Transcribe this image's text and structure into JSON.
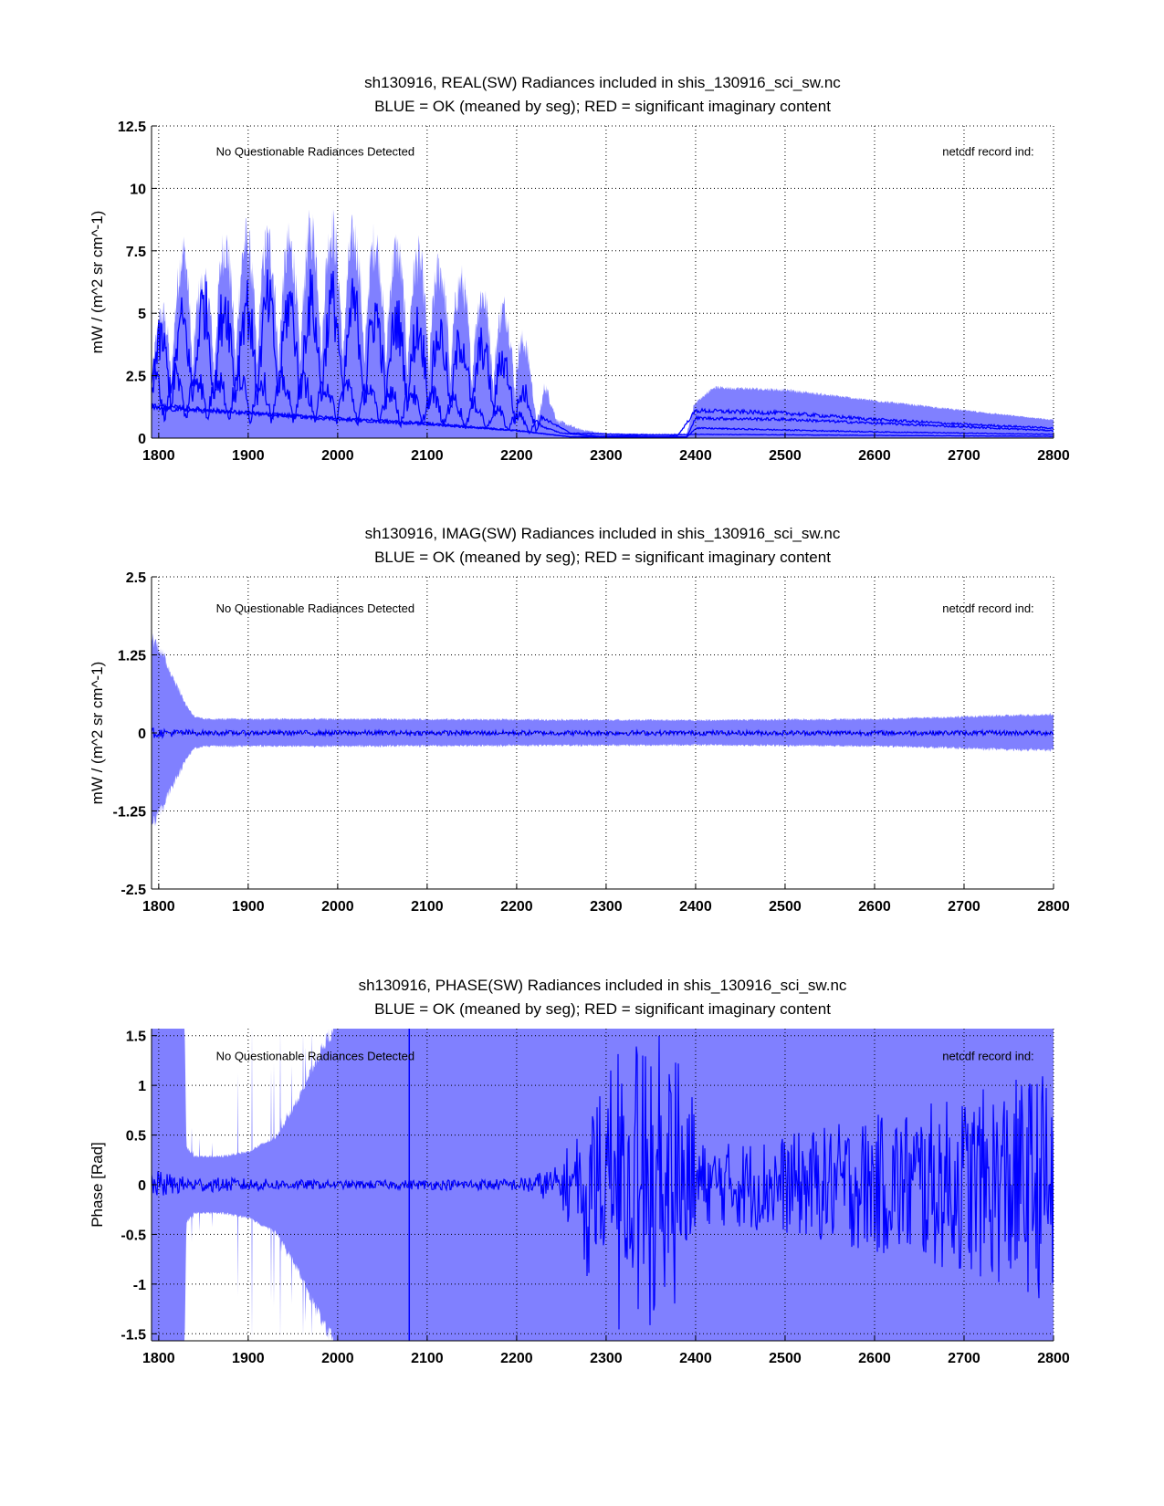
{
  "colors": {
    "envelope": "#8080ff",
    "mean": "#0000ff",
    "grid": "#000000"
  },
  "chart_data": [
    {
      "type": "area",
      "title_line1": "sh130916, REAL(SW) Radiances included in shis_130916_sci_sw.nc",
      "title_line2": "BLUE = OK (meaned by seg); RED = significant imaginary content",
      "xlabel": "",
      "ylabel": "mW / (m^2 sr cm^-1)",
      "ylabel_parts": [
        "mW / (m",
        "2",
        " sr cm",
        "-1",
        ")"
      ],
      "xlim": [
        1792,
        2800
      ],
      "ylim": [
        0,
        12.5
      ],
      "xticks": [
        1800,
        1900,
        2000,
        2100,
        2200,
        2300,
        2400,
        2500,
        2600,
        2700,
        2800
      ],
      "yticks": [
        0,
        2.5,
        5,
        7.5,
        10,
        12.5
      ],
      "ytick_labels": [
        "0",
        "2.5",
        "5",
        "7.5",
        "10",
        "12.5"
      ],
      "grid": true,
      "annotations": [
        {
          "text": "No Questionable Radiances Detected",
          "x": 1975,
          "y": 11.5
        },
        {
          "text": "netcdf record ind:",
          "x": 2727,
          "y": 11.5
        }
      ],
      "envelope_max": {
        "x": [
          1792,
          1800,
          1830,
          1850,
          1870,
          1900,
          1920,
          1950,
          1980,
          2000,
          2050,
          2100,
          2150,
          2200,
          2215,
          2225,
          2232,
          2245,
          2270,
          2300,
          2390,
          2398,
          2420,
          2500,
          2600,
          2700,
          2800
        ],
        "y": [
          4.5,
          5.2,
          8.8,
          6.8,
          8.7,
          9.0,
          8.9,
          8.7,
          9.8,
          9.3,
          8.8,
          8.0,
          6.8,
          5.5,
          3.5,
          1.5,
          2.4,
          0.8,
          0.4,
          0.2,
          0.2,
          1.4,
          2.1,
          2.0,
          1.55,
          1.15,
          0.75
        ]
      },
      "series": [
        {
          "name": "mean seg 1",
          "x": [
            1792,
            1850,
            1900,
            2000,
            2100,
            2180,
            2220,
            2260,
            2380,
            2400,
            2500,
            2600,
            2700,
            2800
          ],
          "y": [
            3.0,
            4.5,
            4.5,
            4.6,
            3.6,
            2.9,
            1.0,
            0.2,
            0.1,
            1.1,
            1.0,
            0.75,
            0.55,
            0.4
          ],
          "oscillating": true
        },
        {
          "name": "mean seg 2",
          "x": [
            1792,
            1900,
            2000,
            2100,
            2200,
            2250,
            2300,
            2390,
            2400,
            2500,
            2600,
            2700,
            2800
          ],
          "y": [
            2.2,
            2.0,
            1.8,
            1.5,
            0.8,
            0.2,
            0.05,
            0.05,
            0.8,
            0.75,
            0.6,
            0.45,
            0.3
          ],
          "oscillating": true
        },
        {
          "name": "mean seg 3",
          "x": [
            1792,
            1900,
            2000,
            2100,
            2200,
            2260,
            2390,
            2400,
            2600,
            2800
          ],
          "y": [
            1.3,
            1.0,
            0.8,
            0.6,
            0.3,
            0.05,
            0.03,
            0.4,
            0.25,
            0.15
          ],
          "oscillating": false
        },
        {
          "name": "mean seg 4",
          "x": [
            1792,
            1900,
            2000,
            2100,
            2200,
            2260,
            2400,
            2800
          ],
          "y": [
            1.2,
            1.0,
            0.75,
            0.55,
            0.3,
            0.05,
            0.15,
            0.07
          ],
          "oscillating": false
        }
      ]
    },
    {
      "type": "area",
      "title_line1": "sh130916, IMAG(SW) Radiances included in shis_130916_sci_sw.nc",
      "title_line2": "BLUE = OK (meaned by seg); RED = significant imaginary content",
      "xlabel": "",
      "ylabel": "mW / (m^2 sr cm^-1)",
      "ylabel_parts": [
        "mW / (m",
        "2",
        " sr cm",
        "-1",
        ")"
      ],
      "xlim": [
        1792,
        2800
      ],
      "ylim": [
        -2.5,
        2.5
      ],
      "xticks": [
        1800,
        1900,
        2000,
        2100,
        2200,
        2300,
        2400,
        2500,
        2600,
        2700,
        2800
      ],
      "yticks": [
        -2.5,
        -1.25,
        0,
        1.25,
        2.5
      ],
      "ytick_labels": [
        "-2.5",
        "-1.25",
        "0",
        "1.25",
        "2.5"
      ],
      "grid": true,
      "annotations": [
        {
          "text": "No Questionable Radiances Detected",
          "x": 1975,
          "y": 2.0
        },
        {
          "text": "netcdf record ind:",
          "x": 2727,
          "y": 2.0
        }
      ],
      "envelope_max": {
        "x": [
          1792,
          1800,
          1815,
          1830,
          1840,
          1850,
          2000,
          2400,
          2600,
          2700,
          2800
        ],
        "y": [
          1.65,
          1.5,
          1.0,
          0.5,
          0.28,
          0.24,
          0.24,
          0.22,
          0.24,
          0.28,
          0.32
        ]
      },
      "series": [
        {
          "name": "mean",
          "x": [
            1792,
            1850,
            2800
          ],
          "y": [
            0.08,
            0.04,
            0.04
          ],
          "noise_amplitude": true
        }
      ]
    },
    {
      "type": "area",
      "title_line1": "sh130916, PHASE(SW) Radiances included in shis_130916_sci_sw.nc",
      "title_line2": "BLUE = OK (meaned by seg); RED = significant imaginary content",
      "xlabel": "",
      "ylabel": "Phase [Rad]",
      "xlim": [
        1792,
        2800
      ],
      "ylim": [
        -1.5708,
        1.5708
      ],
      "xticks": [
        1800,
        1900,
        2000,
        2100,
        2200,
        2300,
        2400,
        2500,
        2600,
        2700,
        2800
      ],
      "yticks": [
        -1.5,
        -1,
        -0.5,
        0,
        0.5,
        1,
        1.5
      ],
      "ytick_labels": [
        "-1.5",
        "-1",
        "-0.5",
        "0",
        "0.5",
        "1",
        "1.5"
      ],
      "grid": true,
      "annotations": [
        {
          "text": "No Questionable Radiances Detected",
          "x": 1975,
          "y": 1.3
        },
        {
          "text": "netcdf record ind:",
          "x": 2727,
          "y": 1.3
        }
      ],
      "envelope_max": {
        "x": [
          1792,
          1829,
          1831,
          1840,
          1870,
          1900,
          1930,
          1950,
          1970,
          1990,
          2000,
          2800
        ],
        "y": [
          1.58,
          1.58,
          0.4,
          0.3,
          0.3,
          0.35,
          0.5,
          0.8,
          1.2,
          1.58,
          1.58,
          1.58
        ]
      },
      "series": [
        {
          "name": "mean",
          "x": [
            1792,
            1830,
            2000,
            2200,
            2250,
            2270,
            2300,
            2380,
            2395,
            2410,
            2500,
            2600,
            2700,
            2800
          ],
          "y": [
            0.15,
            0.08,
            0.04,
            0.06,
            0.2,
            0.8,
            1.5,
            1.5,
            1.0,
            0.4,
            0.5,
            0.7,
            0.9,
            1.2
          ],
          "noise_amplitude": true,
          "spike_at": 2080
        }
      ]
    }
  ]
}
